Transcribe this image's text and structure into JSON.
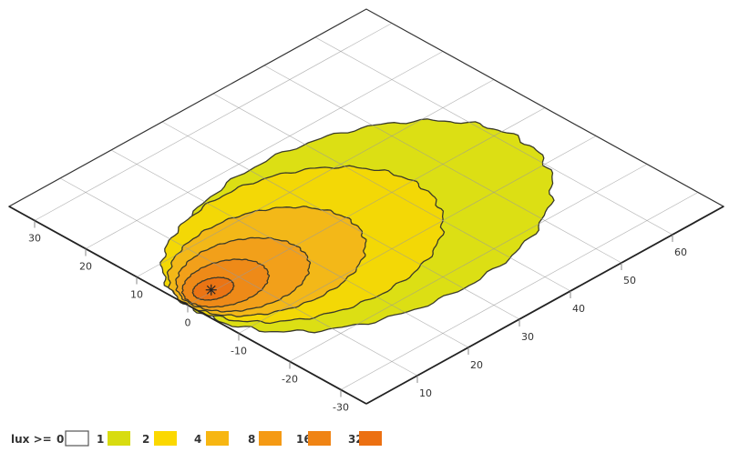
{
  "chart_data": {
    "type": "contour",
    "xlim": [
      0,
      70
    ],
    "ylim": [
      -35,
      35
    ],
    "x_ticks": [
      10,
      20,
      30,
      40,
      50,
      60
    ],
    "y_ticks": [
      30,
      20,
      10,
      0,
      -10,
      -20,
      -30
    ],
    "grid": true,
    "legend": {
      "placement": "bottom-left",
      "prefix": "lux >=",
      "entries": [
        {
          "label": "0",
          "level": 0,
          "color": "#ffffff"
        },
        {
          "label": "1",
          "level": 1,
          "color": "#d8dc10"
        },
        {
          "label": "2",
          "level": 2,
          "color": "#fbd800"
        },
        {
          "label": "4",
          "level": 4,
          "color": "#f7b612"
        },
        {
          "label": "8",
          "level": 8,
          "color": "#f59a14"
        },
        {
          "label": "16",
          "level": 16,
          "color": "#f08414"
        },
        {
          "label": "32",
          "level": 32,
          "color": "#ec7012"
        }
      ]
    },
    "contours": [
      {
        "level": 1,
        "color": "#dcdf14",
        "cx": 31,
        "cy": -3,
        "rx": 31,
        "ry": 21
      },
      {
        "level": 2,
        "color": "#f3d806",
        "cx": 22,
        "cy": -0.5,
        "rx": 22,
        "ry": 16.5
      },
      {
        "level": 4,
        "color": "#f3b818",
        "cx": 15.5,
        "cy": 0,
        "rx": 15.5,
        "ry": 11.5
      },
      {
        "level": 8,
        "color": "#f2a01a",
        "cx": 10.8,
        "cy": 0,
        "rx": 10.3,
        "ry": 8
      },
      {
        "level": 16,
        "color": "#ee8a18",
        "cx": 7.6,
        "cy": 0.2,
        "rx": 6.8,
        "ry": 5
      },
      {
        "level": 32,
        "color": "#ea7414",
        "cx": 5.4,
        "cy": 0.4,
        "rx": 3.2,
        "ry": 2.4
      }
    ],
    "luminaire": {
      "x": 5,
      "y": 0.4
    }
  }
}
